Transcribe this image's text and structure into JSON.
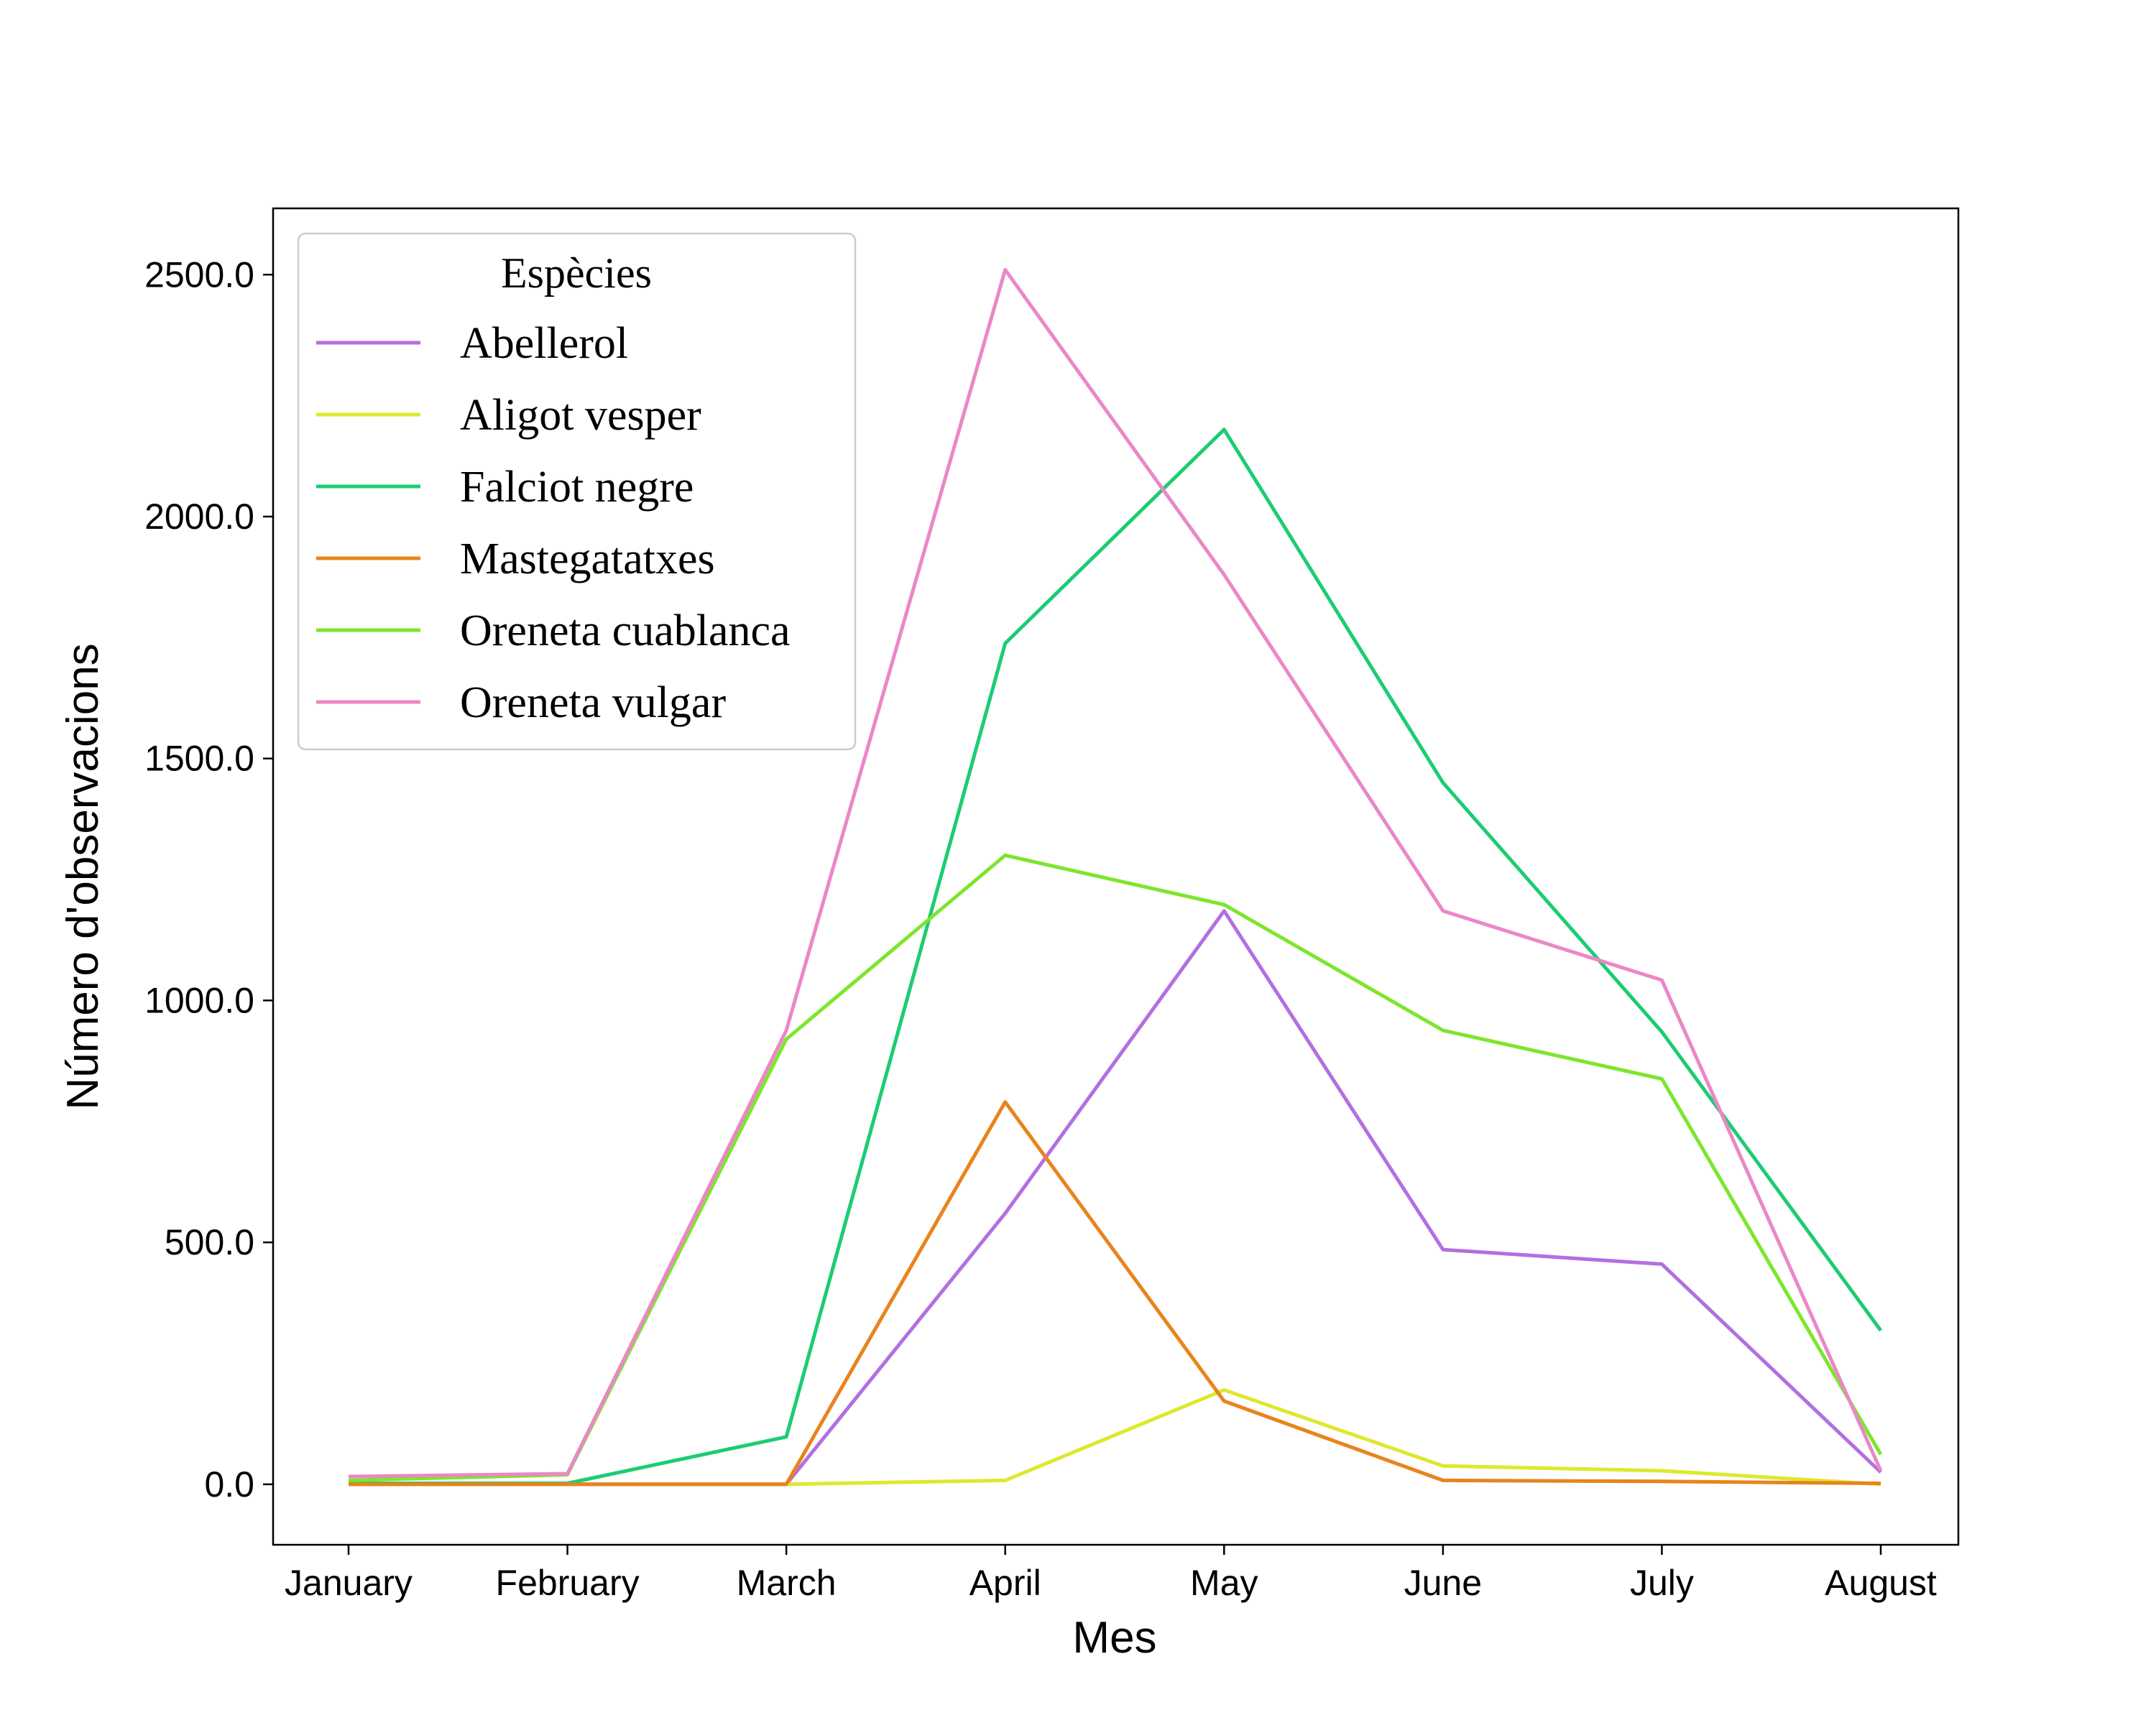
{
  "chart_data": {
    "type": "line",
    "title": "",
    "xlabel": "Mes",
    "ylabel": "Número d'observacions",
    "categories": [
      "January",
      "February",
      "March",
      "April",
      "May",
      "June",
      "July",
      "August"
    ],
    "y_ticks": [
      "0.0",
      "500.0",
      "1000.0",
      "1500.0",
      "2000.0",
      "2500.0"
    ],
    "ylim": [
      -125,
      2637
    ],
    "grid": false,
    "legend": {
      "title": "Espècies",
      "placement": "top-left"
    },
    "series": [
      {
        "name": "Abellerol",
        "color": "#b36fe0",
        "values": [
          0,
          0,
          0,
          560,
          1185,
          485,
          455,
          25
        ]
      },
      {
        "name": "Aligot vesper",
        "color": "#dde82e",
        "values": [
          0,
          0,
          0,
          8,
          195,
          38,
          28,
          0
        ]
      },
      {
        "name": "Falciot negre",
        "color": "#1ccc73",
        "values": [
          2,
          2,
          98,
          1738,
          2180,
          1450,
          935,
          318
        ]
      },
      {
        "name": "Mastegatatxes",
        "color": "#e8841c",
        "values": [
          0,
          0,
          0,
          790,
          172,
          8,
          6,
          2
        ]
      },
      {
        "name": "Oreneta cuablanca",
        "color": "#7ce62c",
        "values": [
          8,
          20,
          920,
          1300,
          1198,
          938,
          838,
          62
        ]
      },
      {
        "name": "Oreneta vulgar",
        "color": "#ea88c6",
        "values": [
          16,
          22,
          938,
          2510,
          1880,
          1185,
          1042,
          28
        ]
      }
    ]
  }
}
